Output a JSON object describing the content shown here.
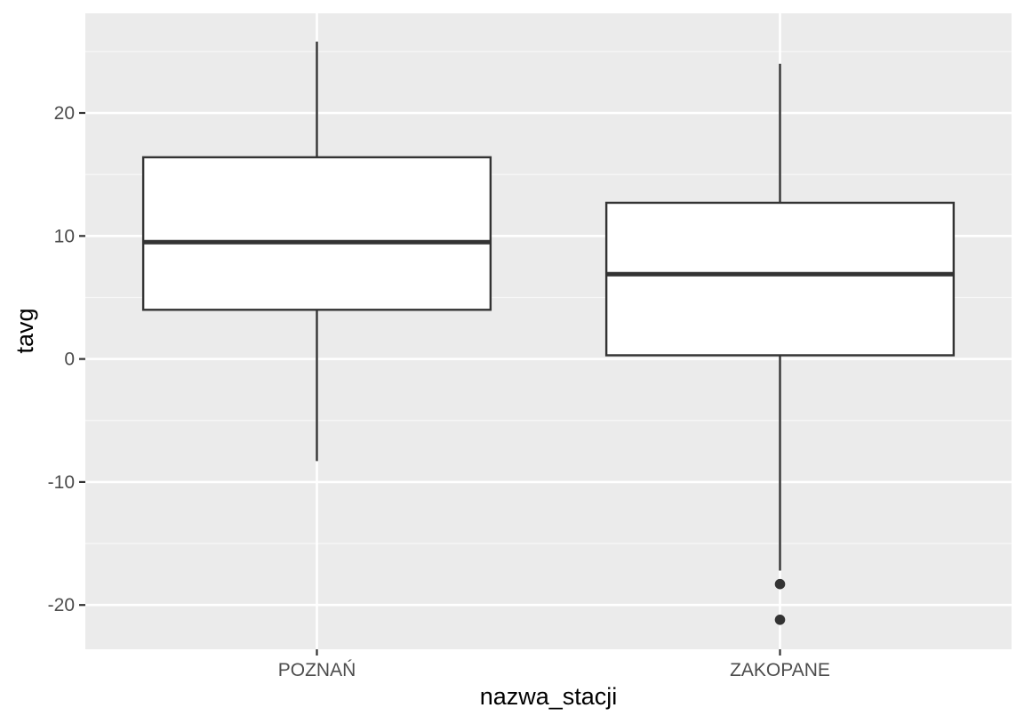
{
  "chart_data": {
    "type": "boxplot",
    "title": "",
    "xlabel": "nazwa_stacji",
    "ylabel": "tavg",
    "ylim": [
      -23.6,
      28.1
    ],
    "yticks": [
      -20,
      -10,
      0,
      10,
      20
    ],
    "ytick_labels": [
      "-20",
      "-10",
      "0",
      "10",
      "20"
    ],
    "grid": true,
    "legend": "none",
    "categories": [
      "POZNAŃ",
      "ZAKOPANE"
    ],
    "boxes": [
      {
        "category": "POZNAŃ",
        "whisker_low": -8.3,
        "q1": 4.0,
        "median": 9.5,
        "q3": 16.4,
        "whisker_high": 25.8,
        "outliers": []
      },
      {
        "category": "ZAKOPANE",
        "whisker_low": -17.2,
        "q1": 0.3,
        "median": 6.9,
        "q3": 12.7,
        "whisker_high": 24.0,
        "outliers": [
          -18.3,
          -21.2
        ]
      }
    ],
    "colors": {
      "panel_background": "#ebebeb",
      "grid_major": "#ffffff",
      "grid_minor": "#f7f7f7",
      "box_fill": "#ffffff",
      "box_line": "#333333",
      "tick_text": "#4d4d4d",
      "axis_title": "#000000"
    }
  }
}
